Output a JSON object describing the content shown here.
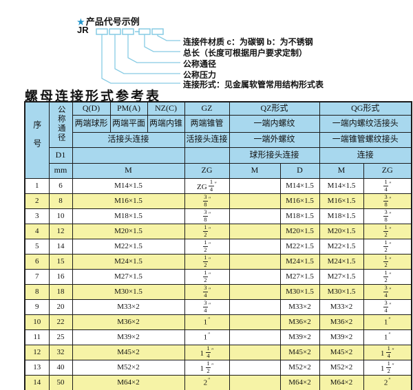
{
  "diagram": {
    "star": "★",
    "title": "产品代号示例",
    "code_prefix": "JR",
    "labels": [
      "连接件材质  c：为碳钢  b：为不锈钢",
      "总长（长度可根据用户要求定制）",
      "公称通径",
      "公称压力",
      "连接形式：见金属软管常用结构形式表"
    ]
  },
  "table": {
    "title": "螺母连接形式参考表",
    "header": {
      "seq": "序号",
      "dn": "公称通径",
      "d1": "D1",
      "mm": "mm",
      "col_q": "Q(D)",
      "col_pm": "PM(A)",
      "col_nz": "NZ(C)",
      "col_gz": "GZ",
      "col_qz": "QZ形式",
      "col_qg": "QG形式",
      "q_desc": "两端球形",
      "pm_desc": "两端平面",
      "nz_desc": "两端内锥",
      "gz_desc": "两端锥管",
      "qz_desc": "一端内螺纹",
      "qg_desc": "一端内螺纹活接头",
      "qpn_conn": "活接头连接",
      "gz_conn": "活接头连接",
      "qz_conn": "一端外螺纹",
      "qg_conn": "一端锥管螺纹接头",
      "qz_conn2": "球形接头连接",
      "qg_conn2": "连接",
      "m_label": "M",
      "zg_label": "ZG",
      "qz_m_label": "M",
      "qz_d_label": "D",
      "qg_m_label": "M",
      "qg_zg_label": "ZG"
    },
    "rows": [
      {
        "seq": "1",
        "dn": "6",
        "m": "M14×1.5",
        "zg": "ZG 1/4″",
        "qz_m": "",
        "qz_d": "M14×1.5",
        "qg_m": "M14×1.5",
        "qg_zg": "1/4″"
      },
      {
        "seq": "2",
        "dn": "8",
        "m": "M16×1.5",
        "zg": "3/8″",
        "qz_m": "",
        "qz_d": "M16×1.5",
        "qg_m": "M16×1.5",
        "qg_zg": "3/8″"
      },
      {
        "seq": "3",
        "dn": "10",
        "m": "M18×1.5",
        "zg": "3/8″",
        "qz_m": "",
        "qz_d": "M18×1.5",
        "qg_m": "M18×1.5",
        "qg_zg": "3/8″"
      },
      {
        "seq": "4",
        "dn": "12",
        "m": "M20×1.5",
        "zg": "1/2″",
        "qz_m": "",
        "qz_d": "M20×1.5",
        "qg_m": "M20×1.5",
        "qg_zg": "1/2″"
      },
      {
        "seq": "5",
        "dn": "14",
        "m": "M22×1.5",
        "zg": "1/2″",
        "qz_m": "",
        "qz_d": "M22×1.5",
        "qg_m": "M22×1.5",
        "qg_zg": "1/2″"
      },
      {
        "seq": "6",
        "dn": "15",
        "m": "M24×1.5",
        "zg": "1/2″",
        "qz_m": "",
        "qz_d": "M24×1.5",
        "qg_m": "M24×1.5",
        "qg_zg": "1/2″"
      },
      {
        "seq": "7",
        "dn": "16",
        "m": "M27×1.5",
        "zg": "1/2″",
        "qz_m": "",
        "qz_d": "M27×1.5",
        "qg_m": "M27×1.5",
        "qg_zg": "1/2″"
      },
      {
        "seq": "8",
        "dn": "18",
        "m": "M30×1.5",
        "zg": "3/4″",
        "qz_m": "",
        "qz_d": "M30×1.5",
        "qg_m": "M30×1.5",
        "qg_zg": "3/4″"
      },
      {
        "seq": "9",
        "dn": "20",
        "m": "M33×2",
        "zg": "3/4″",
        "qz_m": "",
        "qz_d": "M33×2",
        "qg_m": "M33×2",
        "qg_zg": "3/4″"
      },
      {
        "seq": "10",
        "dn": "22",
        "m": "M36×2",
        "zg": "1″",
        "qz_m": "",
        "qz_d": "M36×2",
        "qg_m": "M36×2",
        "qg_zg": "1″"
      },
      {
        "seq": "11",
        "dn": "25",
        "m": "M39×2",
        "zg": "1″",
        "qz_m": "",
        "qz_d": "M39×2",
        "qg_m": "M39×2",
        "qg_zg": "1″"
      },
      {
        "seq": "12",
        "dn": "32",
        "m": "M45×2",
        "zg": "1 1/4″",
        "qz_m": "",
        "qz_d": "M45×2",
        "qg_m": "M45×2",
        "qg_zg": "1 1/4″"
      },
      {
        "seq": "13",
        "dn": "40",
        "m": "M52×2",
        "zg": "1 1/2″",
        "qz_m": "",
        "qz_d": "M52×2",
        "qg_m": "M52×2",
        "qg_zg": "1 1/2″"
      },
      {
        "seq": "14",
        "dn": "50",
        "m": "M64×2",
        "zg": "2″",
        "qz_m": "",
        "qz_d": "M64×2",
        "qg_m": "M64×2",
        "qg_zg": "2″"
      }
    ]
  },
  "colors": {
    "hdr-blue": "#a8d8ee",
    "row-yellow": "#f6f3a6",
    "line-blue": "#86cbe4",
    "star-blue": "#2596cc",
    "border": "#1a1a1a"
  }
}
